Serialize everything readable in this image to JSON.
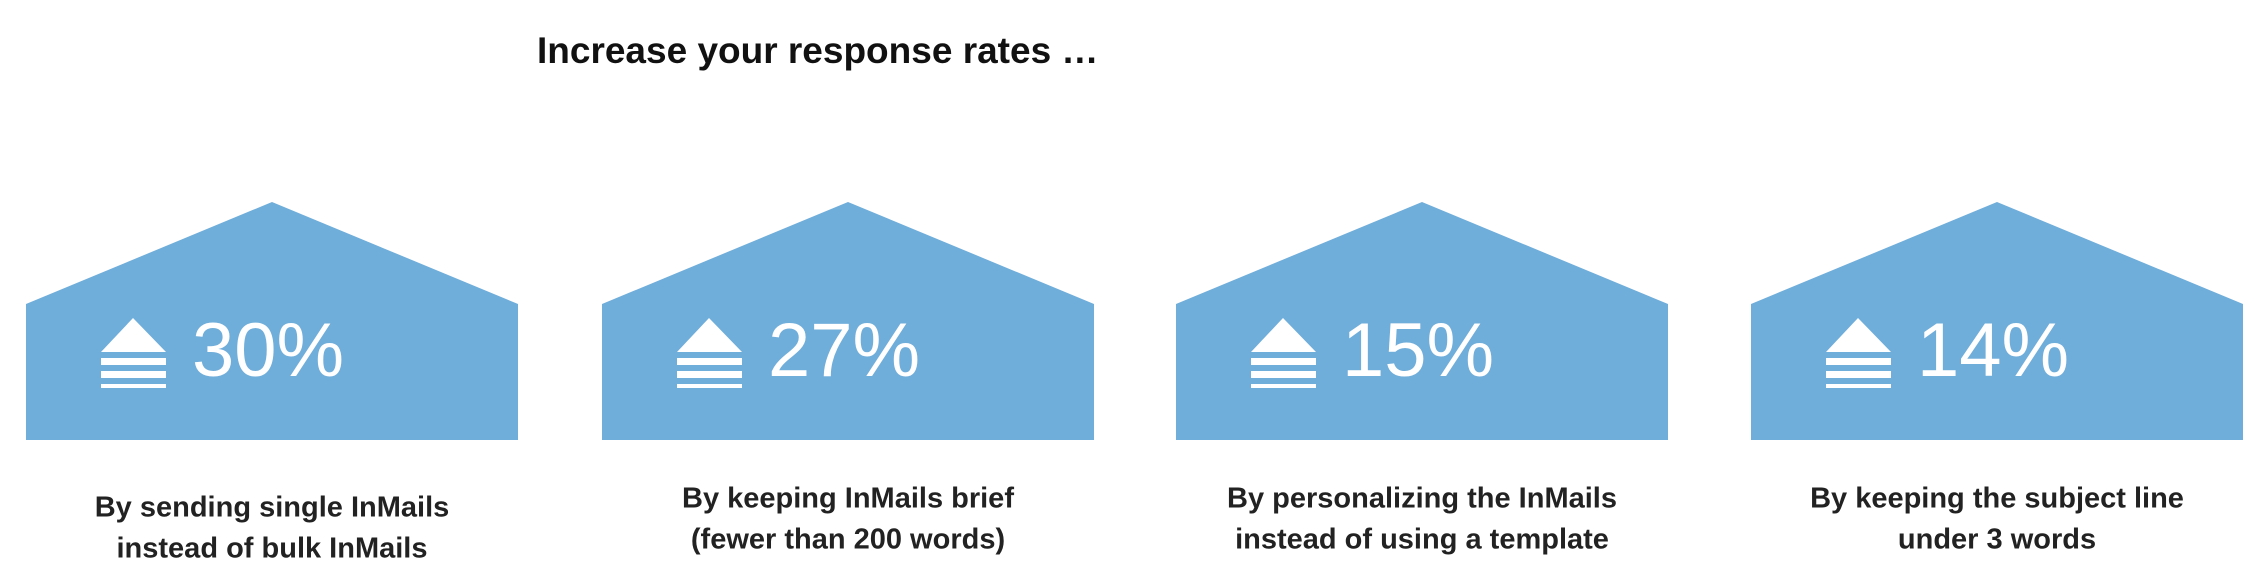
{
  "title": "Increase your response rates …",
  "cards": [
    {
      "value": "30%",
      "caption": [
        "By sending single InMails",
        "instead of bulk InMails"
      ]
    },
    {
      "value": "27%",
      "caption": [
        "By keeping InMails brief",
        "(fewer than 200 words)"
      ]
    },
    {
      "value": "15%",
      "caption": [
        "By personalizing the InMails",
        "instead of using a template"
      ]
    },
    {
      "value": "14%",
      "caption": [
        "By keeping the subject line",
        "under 3 words"
      ]
    }
  ]
}
